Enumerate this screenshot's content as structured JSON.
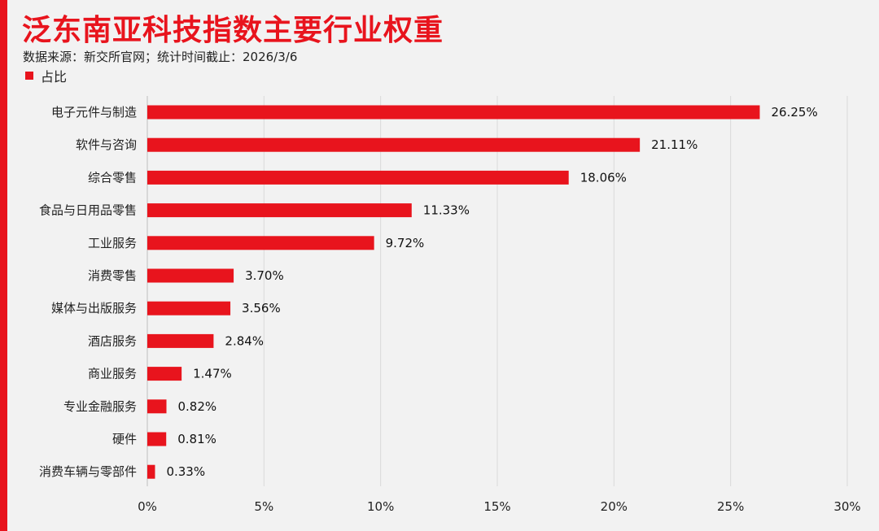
{
  "title": "泛东南亚科技指数主要行业权重",
  "subtitle": "数据来源：新交所官网；统计时间截止：2026/3/6",
  "colors": {
    "accent": "#e8141d",
    "bar": "#e8141d",
    "grid": "#d9d9d9",
    "background": "#f2f2f2"
  },
  "chart_data": {
    "type": "bar",
    "orientation": "horizontal",
    "title": "泛东南亚科技指数主要行业权重",
    "categories": [
      "电子元件与制造",
      "软件与咨询",
      "综合零售",
      "食品与日用品零售",
      "工业服务",
      "消费零售",
      "媒体与出版服务",
      "酒店服务",
      "商业服务",
      "专业金融服务",
      "硬件",
      "消费车辆与零部件"
    ],
    "series": [
      {
        "name": "占比",
        "values": [
          26.25,
          21.11,
          18.06,
          11.33,
          9.72,
          3.7,
          3.56,
          2.84,
          1.47,
          0.82,
          0.81,
          0.33
        ]
      }
    ],
    "data_labels": [
      "26.25%",
      "21.11%",
      "18.06%",
      "11.33%",
      "9.72%",
      "3.70%",
      "3.56%",
      "2.84%",
      "1.47%",
      "0.82%",
      "0.81%",
      "0.33%"
    ],
    "xlim": [
      0,
      30
    ],
    "xticks": [
      0,
      5,
      10,
      15,
      20,
      25,
      30
    ],
    "xtick_labels": [
      "0%",
      "5%",
      "10%",
      "15%",
      "20%",
      "25%",
      "30%"
    ],
    "grid": true,
    "legend": "top-left"
  }
}
